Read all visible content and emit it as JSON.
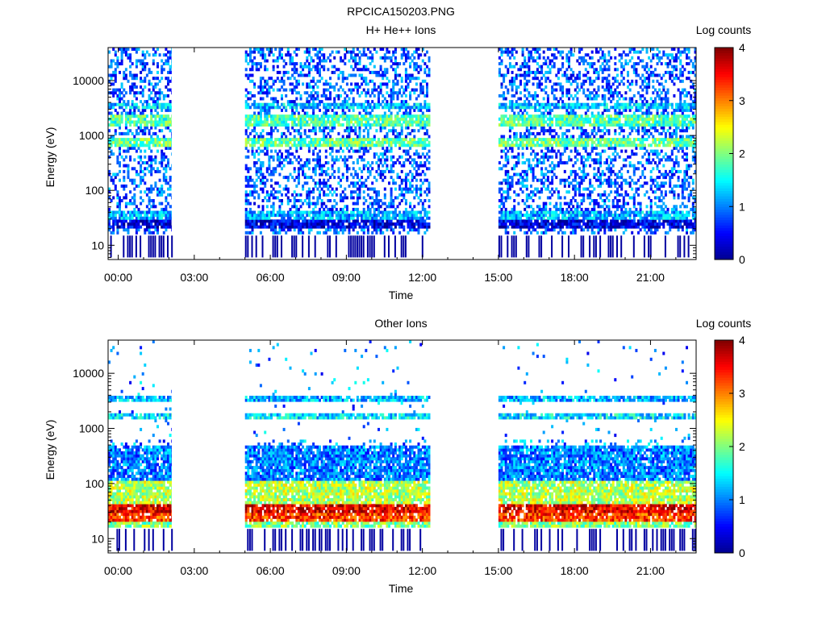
{
  "figure": {
    "title": "RPCICA150203.PNG"
  },
  "colors": {
    "background": "#ffffff",
    "axis": "#000000",
    "colormap": [
      "#00008f",
      "#0000ff",
      "#0080ff",
      "#00ffff",
      "#80ff80",
      "#ffff00",
      "#ff8000",
      "#ff0000",
      "#800000"
    ]
  },
  "chart_data": [
    {
      "type": "heatmap",
      "title": "H+ He++ Ions",
      "xlabel": "Time",
      "ylabel": "Energy (eV)",
      "x_tick_labels": [
        "00:00",
        "03:00",
        "06:00",
        "09:00",
        "12:00",
        "15:00",
        "18:00",
        "21:00"
      ],
      "x_ticks_hours": [
        0,
        3,
        6,
        9,
        12,
        15,
        18,
        21
      ],
      "xlim_hours": [
        -0.4,
        22.8
      ],
      "y_scale": "log",
      "y_tick_labels": [
        "10",
        "100",
        "1000",
        "10000"
      ],
      "y_ticks": [
        10,
        100,
        1000,
        10000
      ],
      "ylim": [
        5.5,
        40000
      ],
      "data_coverage_hours": [
        [
          -0.4,
          2.1
        ],
        [
          5.0,
          12.3
        ],
        [
          15.0,
          22.8
        ]
      ],
      "energy_bands": [
        {
          "energy_range": [
            20,
            28
          ],
          "level": 0.4
        },
        {
          "energy_range": [
            28,
            42
          ],
          "level": 1.2
        },
        {
          "energy_range": [
            1500,
            2300
          ],
          "level": 1.8
        },
        {
          "energy_range": [
            620,
            900
          ],
          "level": 1.9
        },
        {
          "energy_range": [
            3200,
            4000
          ],
          "level": 1.3
        }
      ],
      "background_level": "sparse noise, 0.3–1.5",
      "colorbar": {
        "label": "Log counts",
        "range": [
          0,
          4
        ],
        "tick_labels": [
          "0",
          "1",
          "2",
          "3",
          "4"
        ],
        "ticks": [
          0,
          1,
          2,
          3,
          4
        ]
      }
    },
    {
      "type": "heatmap",
      "title": "Other Ions",
      "xlabel": "Time",
      "ylabel": "Energy (eV)",
      "x_tick_labels": [
        "00:00",
        "03:00",
        "06:00",
        "09:00",
        "12:00",
        "15:00",
        "18:00",
        "21:00"
      ],
      "x_ticks_hours": [
        0,
        3,
        6,
        9,
        12,
        15,
        18,
        21
      ],
      "xlim_hours": [
        -0.4,
        22.8
      ],
      "y_scale": "log",
      "y_tick_labels": [
        "10",
        "100",
        "1000",
        "10000"
      ],
      "y_ticks": [
        10,
        100,
        1000,
        10000
      ],
      "ylim": [
        5.5,
        40000
      ],
      "data_coverage_hours": [
        [
          -0.4,
          2.1
        ],
        [
          5.0,
          12.3
        ],
        [
          15.0,
          22.8
        ]
      ],
      "energy_bands": [
        {
          "energy_range": [
            16,
            20
          ],
          "level": 2.0
        },
        {
          "energy_range": [
            20,
            30
          ],
          "level": 3.3
        },
        {
          "energy_range": [
            30,
            42
          ],
          "level": 3.6
        },
        {
          "energy_range": [
            42,
            120
          ],
          "level": 2.2
        },
        {
          "energy_range": [
            120,
            500
          ],
          "level": 1.0
        },
        {
          "energy_range": [
            1500,
            2000
          ],
          "level": 1.4
        },
        {
          "energy_range": [
            3200,
            4000
          ],
          "level": 1.2
        }
      ],
      "colorbar": {
        "label": "Log counts",
        "range": [
          0,
          4
        ],
        "tick_labels": [
          "0",
          "1",
          "2",
          "3",
          "4"
        ],
        "ticks": [
          0,
          1,
          2,
          3,
          4
        ]
      }
    }
  ]
}
